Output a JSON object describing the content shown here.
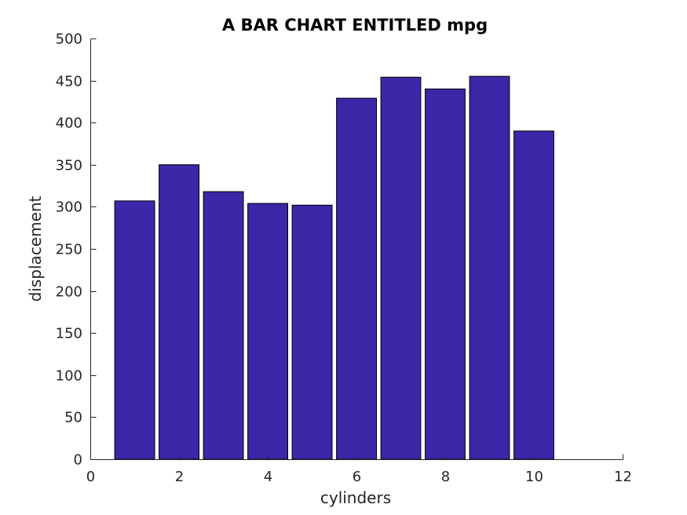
{
  "chart_data": {
    "type": "bar",
    "title": "A BAR CHART ENTITLED mpg",
    "xlabel": "cylinders",
    "ylabel": "displacement",
    "x": [
      1,
      2,
      3,
      4,
      5,
      6,
      7,
      8,
      9,
      10
    ],
    "values": [
      307,
      350,
      318,
      304,
      302,
      429,
      454,
      440,
      455,
      390
    ],
    "xlim": [
      0,
      12
    ],
    "ylim": [
      0,
      500
    ],
    "xticks": [
      0,
      2,
      4,
      6,
      8,
      10,
      12
    ],
    "yticks": [
      0,
      50,
      100,
      150,
      200,
      250,
      300,
      350,
      400,
      450,
      500
    ],
    "bar_color": "#3b27a8",
    "grid": false,
    "legend": "none"
  }
}
